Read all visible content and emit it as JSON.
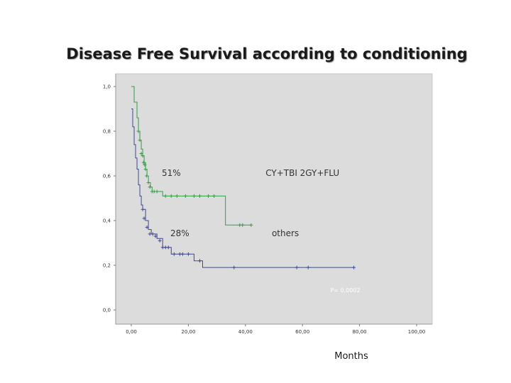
{
  "slide": {
    "title": "Disease Free Survival according to conditioning"
  },
  "chart_data": {
    "type": "line",
    "step": true,
    "xlabel": "Months",
    "ylabel": "",
    "xlim": [
      0,
      100
    ],
    "ylim": [
      0,
      1
    ],
    "x_tick_labels": [
      "0,00",
      "20,00",
      "40,00",
      "60,00",
      "80,00",
      "100,00"
    ],
    "x_tick_values": [
      0,
      20,
      40,
      60,
      80,
      100
    ],
    "y_tick_labels": [
      "0,0",
      "0,2",
      "0,4",
      "0,6",
      "0,8",
      "1,0"
    ],
    "y_tick_values": [
      0,
      0.2,
      0.4,
      0.6,
      0.8,
      1.0
    ],
    "grid": false,
    "background": "#dcdcdc",
    "series": [
      {
        "name": "CY+TBI 2GY+FLU",
        "color": "#2ea043",
        "steps": [
          [
            0,
            1.0
          ],
          [
            1,
            0.93
          ],
          [
            2,
            0.86
          ],
          [
            2.5,
            0.8
          ],
          [
            3,
            0.76
          ],
          [
            3.5,
            0.72
          ],
          [
            4,
            0.69
          ],
          [
            4.5,
            0.66
          ],
          [
            5,
            0.63
          ],
          [
            5.5,
            0.6
          ],
          [
            6,
            0.57
          ],
          [
            6.7,
            0.55
          ],
          [
            7.3,
            0.53
          ],
          [
            11,
            0.51
          ],
          [
            33,
            0.38
          ],
          [
            42,
            0.38
          ]
        ],
        "censored": [
          [
            2.5,
            0.8
          ],
          [
            3,
            0.76
          ],
          [
            3.5,
            0.7
          ],
          [
            4,
            0.69
          ],
          [
            4.3,
            0.66
          ],
          [
            4.7,
            0.65
          ],
          [
            5,
            0.63
          ],
          [
            5.4,
            0.6
          ],
          [
            6,
            0.57
          ],
          [
            6.5,
            0.55
          ],
          [
            7.3,
            0.53
          ],
          [
            8,
            0.53
          ],
          [
            9,
            0.53
          ],
          [
            12,
            0.51
          ],
          [
            14,
            0.51
          ],
          [
            16,
            0.51
          ],
          [
            19,
            0.51
          ],
          [
            22,
            0.51
          ],
          [
            24,
            0.51
          ],
          [
            27,
            0.51
          ],
          [
            29,
            0.51
          ],
          [
            38,
            0.38
          ],
          [
            39,
            0.38
          ],
          [
            42,
            0.38
          ]
        ],
        "annotation": "51%"
      },
      {
        "name": "others",
        "color": "#3a4a9a",
        "steps": [
          [
            0,
            0.9
          ],
          [
            0.5,
            0.82
          ],
          [
            1,
            0.74
          ],
          [
            1.5,
            0.68
          ],
          [
            2,
            0.63
          ],
          [
            2.5,
            0.56
          ],
          [
            3,
            0.51
          ],
          [
            3.5,
            0.47
          ],
          [
            4,
            0.45
          ],
          [
            5,
            0.4
          ],
          [
            6,
            0.36
          ],
          [
            7,
            0.34
          ],
          [
            9,
            0.32
          ],
          [
            11,
            0.28
          ],
          [
            14,
            0.25
          ],
          [
            22,
            0.22
          ],
          [
            25,
            0.19
          ],
          [
            78,
            0.19
          ]
        ],
        "censored": [
          [
            4,
            0.45
          ],
          [
            4.5,
            0.41
          ],
          [
            5.5,
            0.37
          ],
          [
            6.5,
            0.34
          ],
          [
            7.5,
            0.34
          ],
          [
            8.5,
            0.33
          ],
          [
            10,
            0.31
          ],
          [
            11,
            0.28
          ],
          [
            12,
            0.28
          ],
          [
            13,
            0.28
          ],
          [
            15,
            0.25
          ],
          [
            17,
            0.25
          ],
          [
            18,
            0.25
          ],
          [
            20,
            0.25
          ],
          [
            24,
            0.22
          ],
          [
            36,
            0.19
          ],
          [
            58,
            0.19
          ],
          [
            62,
            0.19
          ],
          [
            78,
            0.19
          ]
        ],
        "annotation": "28%"
      }
    ],
    "annotations": [
      {
        "text": "51%",
        "x": 14,
        "y": 0.6
      },
      {
        "text": "CY+TBI 2GY+FLU",
        "x": 60,
        "y": 0.6
      },
      {
        "text": "28%",
        "x": 17,
        "y": 0.33
      },
      {
        "text": "others",
        "x": 54,
        "y": 0.33
      },
      {
        "text": "P= 0,0002",
        "x": 75,
        "y": 0.08
      }
    ]
  }
}
